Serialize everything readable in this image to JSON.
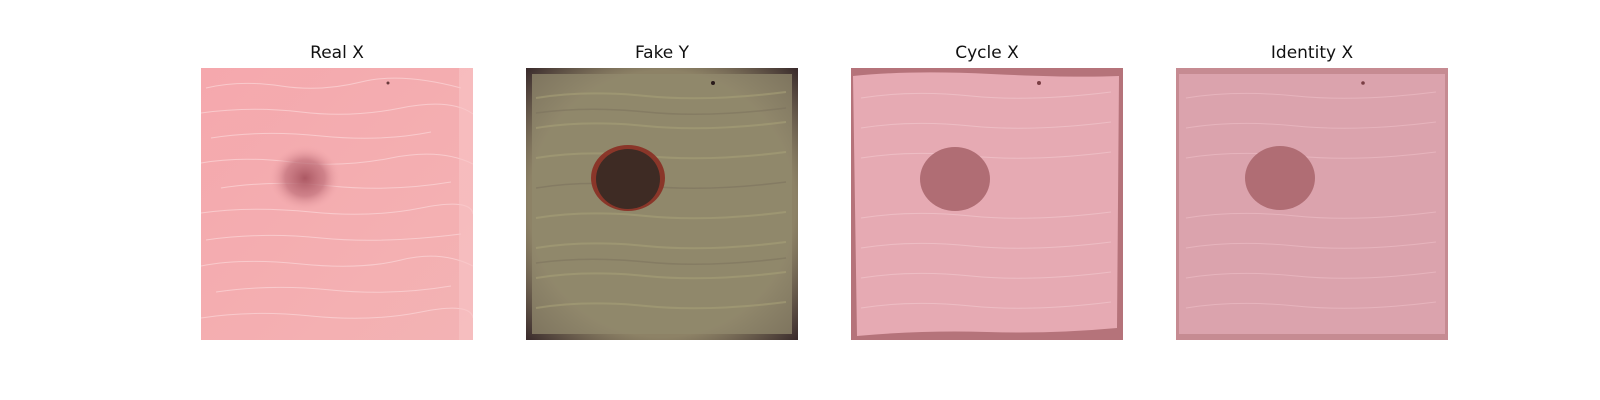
{
  "figure": {
    "panels": [
      {
        "title": "Real X"
      },
      {
        "title": "Fake Y"
      },
      {
        "title": "Cycle X"
      },
      {
        "title": "Identity X"
      }
    ]
  }
}
